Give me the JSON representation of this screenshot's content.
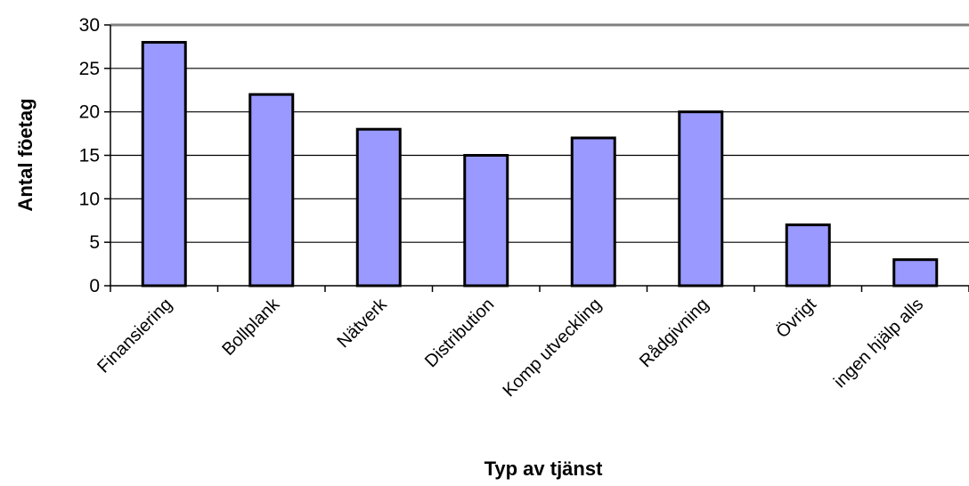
{
  "chart_data": {
    "type": "bar",
    "title": "",
    "xlabel": "Typ av tjänst",
    "ylabel": "Antal föetag",
    "categories": [
      "Finansiering",
      "Bollplank",
      "Nätverk",
      "Distribution",
      "Komp utveckling",
      "Rådgivning",
      "Övrigt",
      "ingen hjälp alls"
    ],
    "values": [
      28,
      22,
      18,
      15,
      17,
      20,
      7,
      3
    ],
    "ylim": [
      0,
      30
    ],
    "yticks": [
      "0",
      "5",
      "10",
      "15",
      "20",
      "25",
      "30"
    ],
    "grid": true,
    "legend": "none",
    "colors": {
      "bar_fill": "#9999ff",
      "bar_stroke": "#000000",
      "grid": "#000000",
      "top_border": "#808080"
    }
  }
}
